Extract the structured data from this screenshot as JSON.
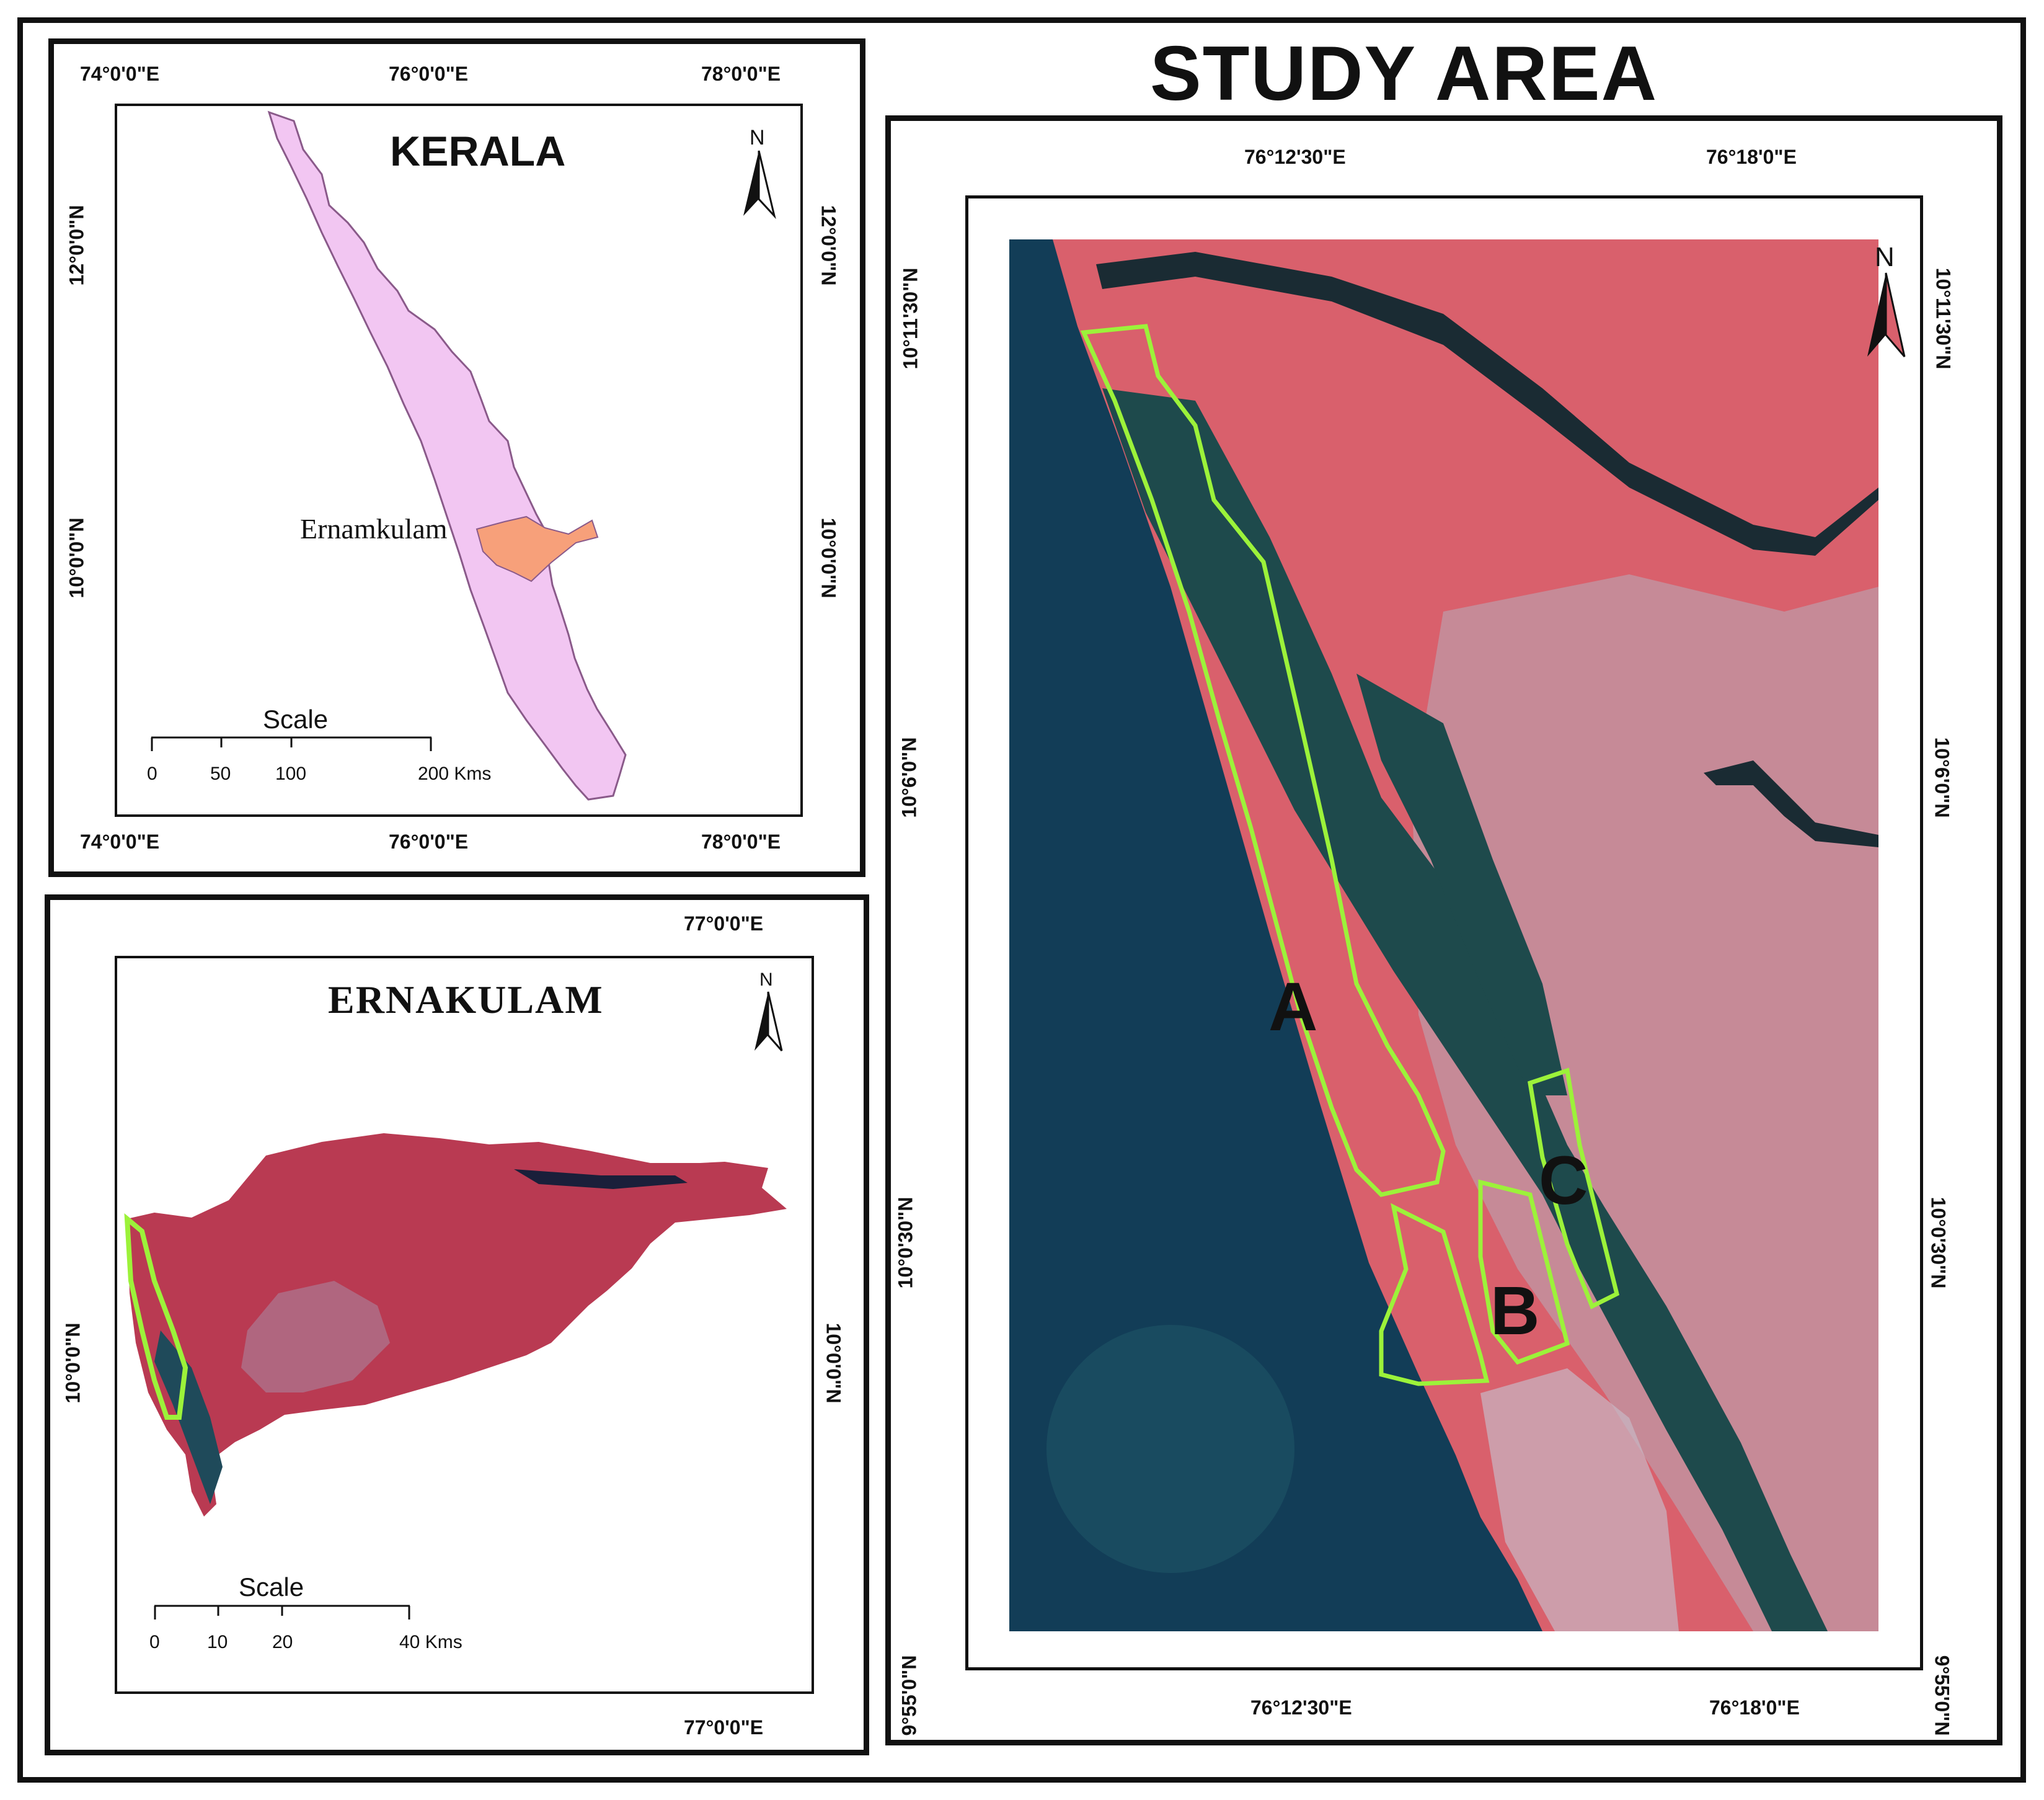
{
  "main_title": "STUDY AREA",
  "kerala": {
    "title": "KERALA",
    "district_label": "Ernamkulam",
    "north": "N",
    "top_ticks": [
      "74°0'0\"E",
      "76°0'0\"E",
      "78°0'0\"E"
    ],
    "bottom_ticks": [
      "74°0'0\"E",
      "76°0'0\"E",
      "78°0'0\"E"
    ],
    "left_ticks": [
      "12°0'0\"N",
      "10°0'0\"N"
    ],
    "right_ticks": [
      "12°0'0\"N",
      "10°0'0\"N"
    ],
    "scale": {
      "title": "Scale",
      "labels": [
        "0",
        "50",
        "100",
        "200 Kms"
      ]
    },
    "colors": {
      "state": "#f2c6f2",
      "district": "#f7a07a"
    }
  },
  "ernakulam": {
    "title": "ERNAKULAM",
    "north": "N",
    "top_ticks": [
      "77°0'0\"E"
    ],
    "bottom_ticks": [
      "77°0'0\"E"
    ],
    "left_ticks": [
      "10°0'0\"N"
    ],
    "right_ticks": [
      "10°0'0\"N"
    ],
    "scale": {
      "title": "Scale",
      "labels": [
        "0",
        "10",
        "20",
        "40 Kms"
      ]
    }
  },
  "study_area": {
    "north": "N",
    "top_ticks": [
      "76°12'30\"E",
      "76°18'0\"E"
    ],
    "bottom_ticks": [
      "76°12'30\"E",
      "76°18'0\"E"
    ],
    "left_ticks": [
      "10°11'30\"N",
      "10°6'0\"N",
      "10°0'30\"N",
      "9°55'0\"N"
    ],
    "right_ticks": [
      "10°11'30\"N",
      "10°6'0\"N",
      "10°0'30\"N",
      "9°55'0\"N"
    ],
    "zones": [
      "A",
      "B",
      "C"
    ],
    "colors": {
      "sea": "#123d57",
      "land": "#d9606c",
      "water": "#1e4a4c",
      "zone_outline": "#9cf23a"
    }
  }
}
